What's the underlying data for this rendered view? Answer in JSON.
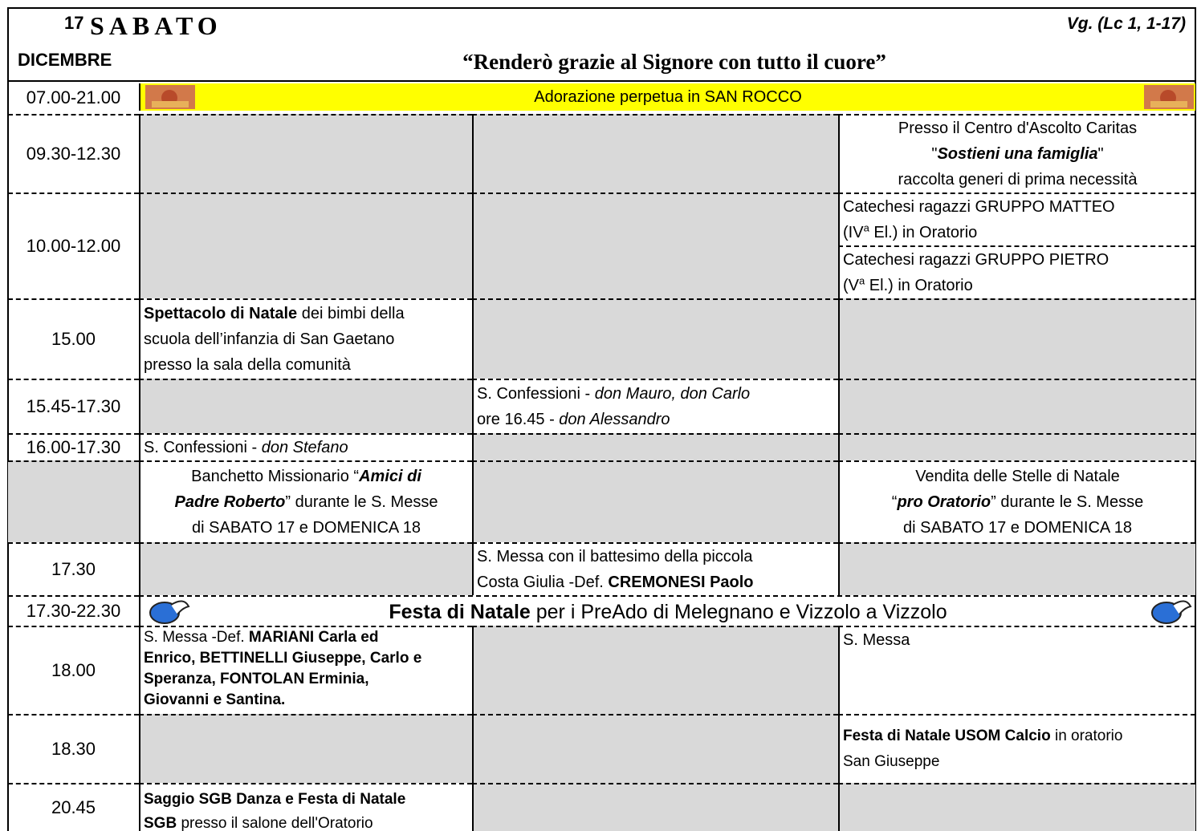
{
  "header": {
    "day_number": "17",
    "weekday": "SABATO",
    "month": "DICEMBRE",
    "gospel": "Vg. (Lc 1, 1-17)",
    "motto": "“Renderò grazie al Signore con tutto il cuore”"
  },
  "schedule": [
    {
      "time": "07.00-21.00",
      "event": "Adorazione perpetua in SAN ROCCO"
    },
    {
      "time": "09.30-12.30",
      "col3": [
        "Presso il Centro d'Ascolto Caritas",
        "\"",
        "Sostieni una famiglia",
        "\"",
        "raccolta generi di prima necessità"
      ]
    },
    {
      "time": "10.00-12.00",
      "col3": [
        [
          "Catechesi ragazzi GRUPPO MATTEO",
          "(IV",
          "a",
          " El.) in Oratorio"
        ],
        [
          "Catechesi ragazzi GRUPPO PIETRO",
          "(V",
          "a",
          " El.) in Oratorio"
        ]
      ]
    },
    {
      "time": "15.00",
      "col1": [
        "Spettacolo di Natale",
        " dei bimbi della",
        "scuola dell’infanzia di San Gaetano",
        "presso la sala della comunità"
      ]
    },
    {
      "time": "15.45-17.30",
      "col2": [
        "S. Confessioni - ",
        "don Mauro, don Carlo",
        "ore 16.45 - ",
        "don Alessandro"
      ]
    },
    {
      "time": "16.00-17.30",
      "col1": [
        "S. Confessioni - ",
        "don Stefano"
      ]
    },
    {
      "col1": [
        "Banchetto Missionario “",
        "Amici di",
        "Padre Roberto",
        "” durante le S. Messe",
        "di SABATO 17 e DOMENICA 18"
      ],
      "col3": [
        "Vendita delle Stelle di Natale",
        "“",
        "pro Oratorio",
        "” durante le S. Messe",
        "di SABATO 17 e DOMENICA 18"
      ]
    },
    {
      "time": "17.30",
      "col2": [
        "S. Messa con il battesimo della piccola",
        "Costa Giulia -Def. ",
        "CREMONESI Paolo"
      ]
    },
    {
      "time": "17.30-22.30",
      "event": [
        "Festa di Natale",
        " per i PreAdo di Melegnano e Vizzolo a Vizzolo"
      ]
    },
    {
      "time": "18.00",
      "col1": [
        "S. Messa -Def. ",
        "MARIANI Carla ed",
        "Enrico, BETTINELLI Giuseppe, Carlo e",
        "Speranza, FONTOLAN Erminia,",
        "Giovanni e Santina."
      ],
      "col3": [
        "S. Messa"
      ]
    },
    {
      "time": "18.30",
      "col3": [
        "Festa di Natale USOM Calcio",
        " in oratorio",
        "San Giuseppe"
      ]
    },
    {
      "time": "20.45",
      "col1": [
        "Saggio SGB Danza e Festa di Natale",
        "SGB",
        " presso il salone dell'Oratorio"
      ]
    }
  ]
}
